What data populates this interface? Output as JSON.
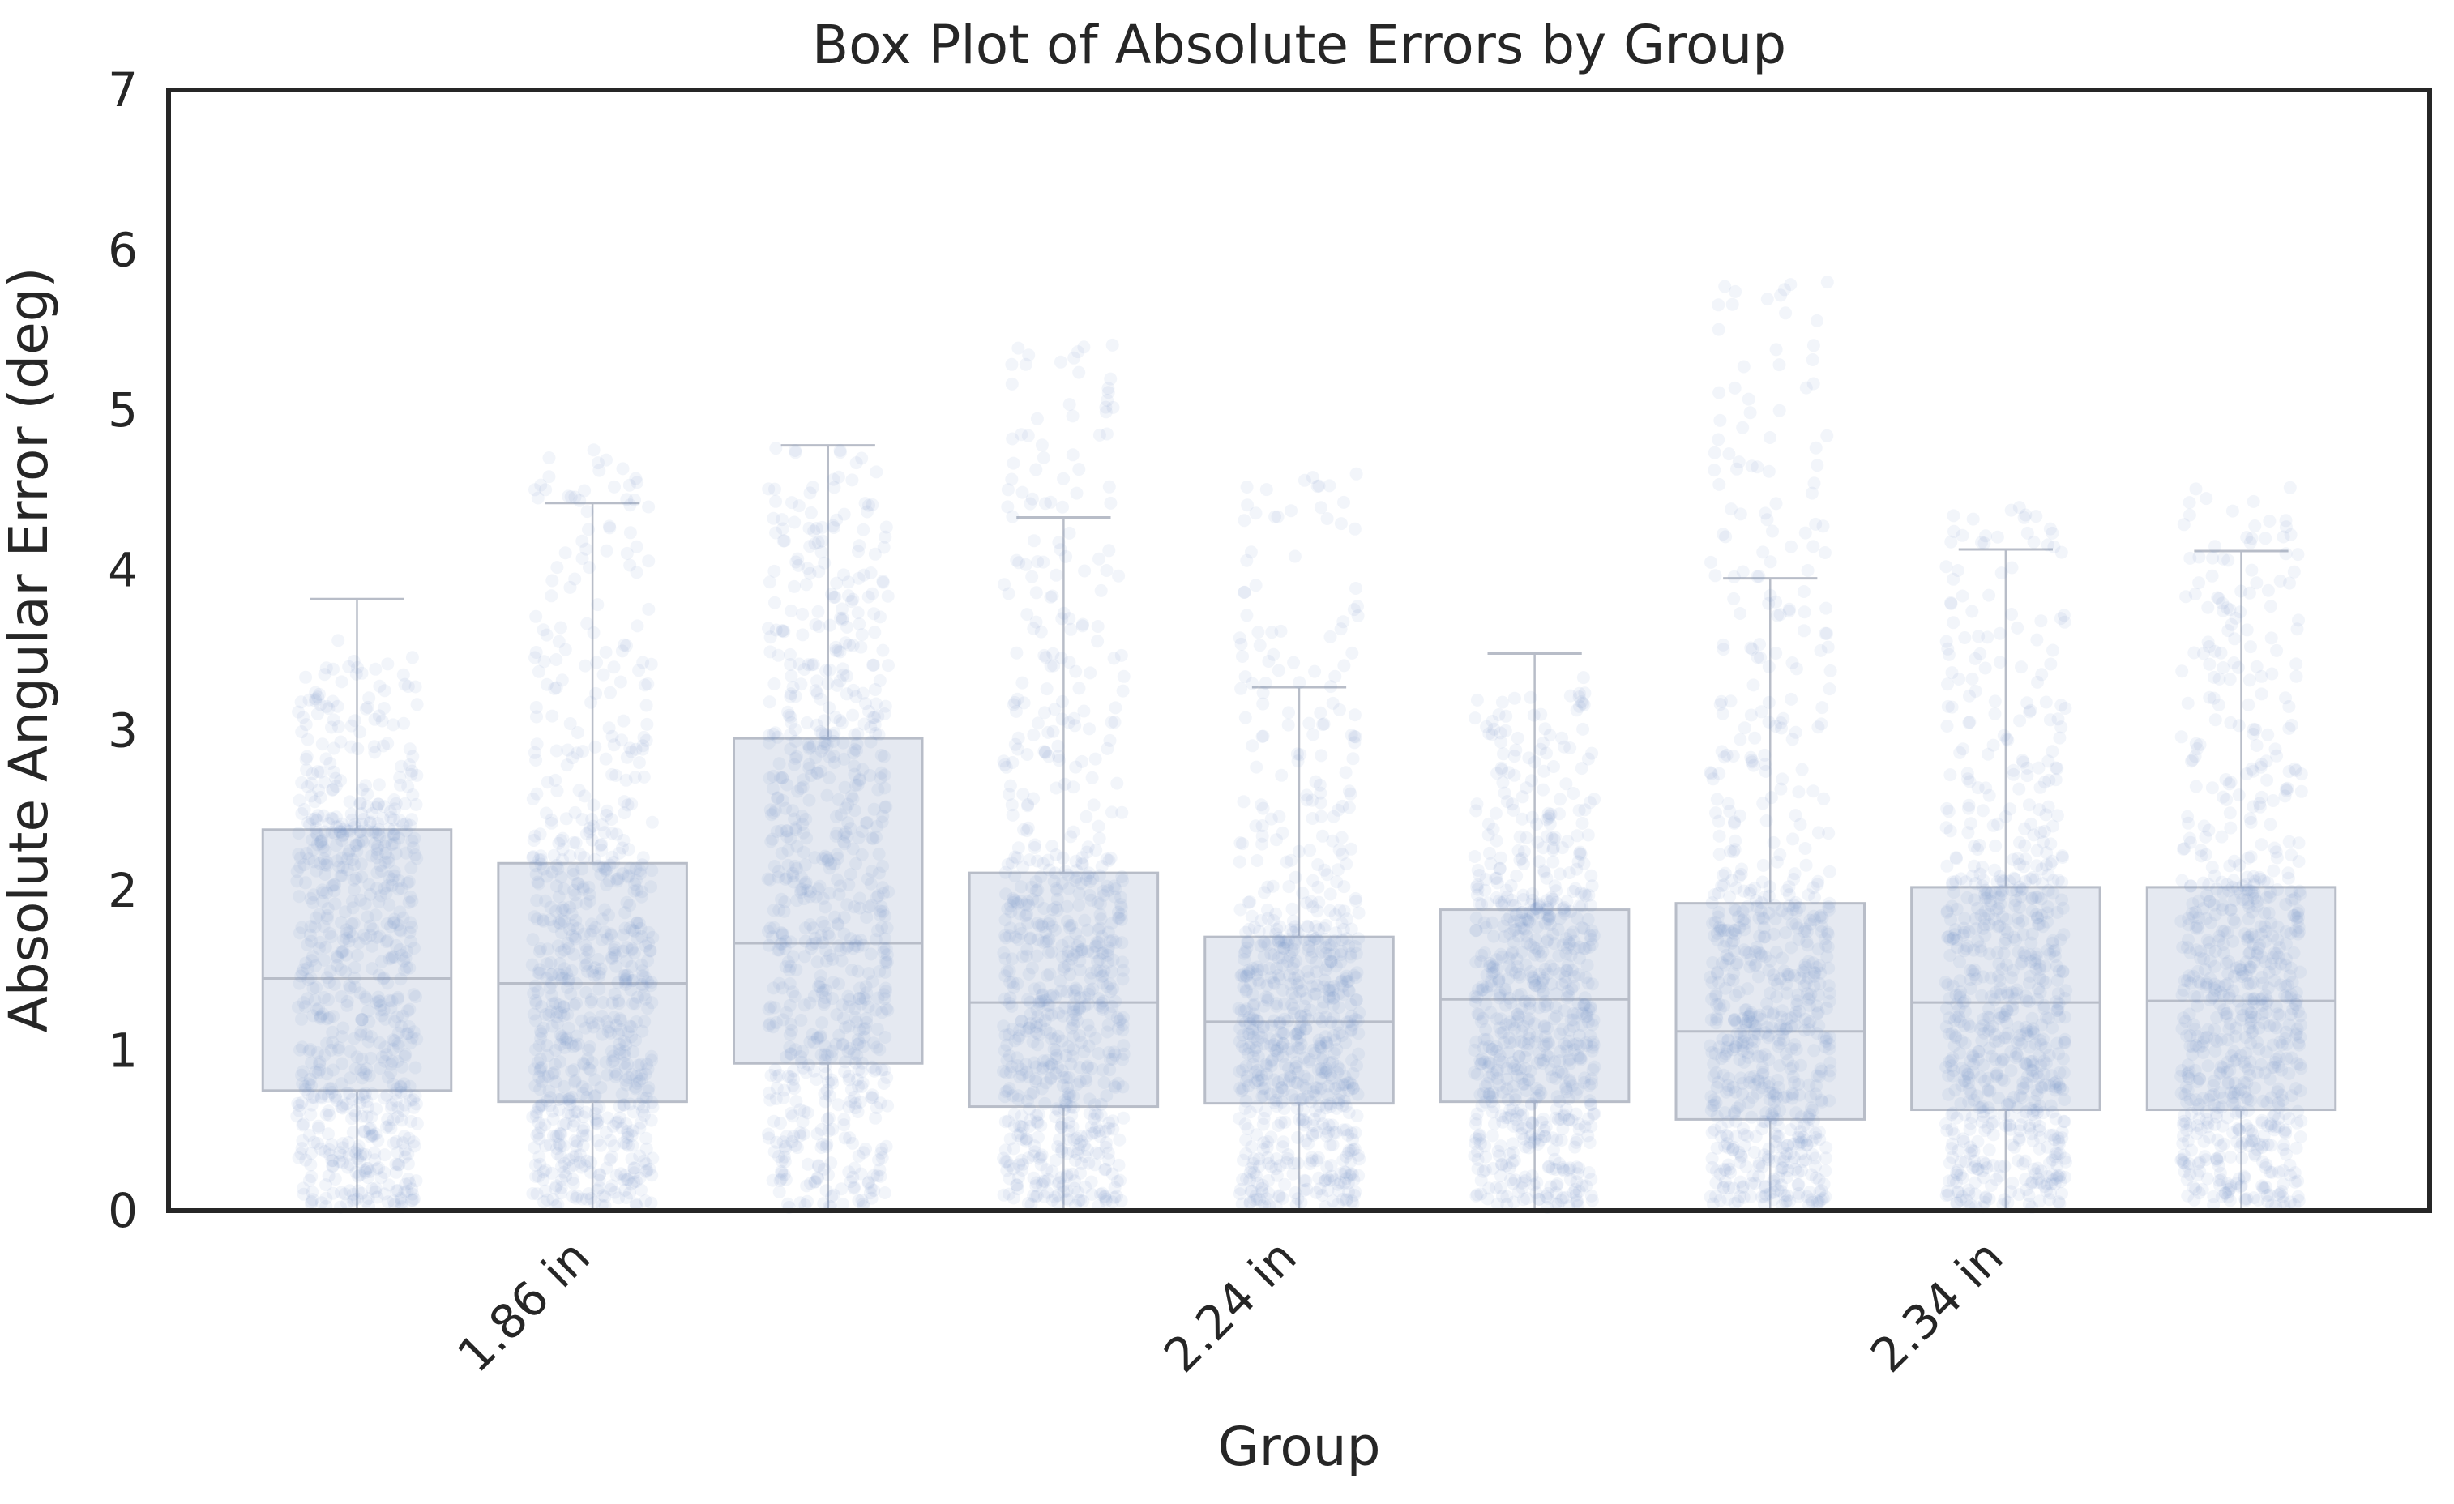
{
  "chart_data": {
    "type": "box",
    "title": "Box Plot of Absolute Errors by Group",
    "xlabel": "Group",
    "ylabel": "Absolute Angular Error (deg)",
    "ylim": [
      0,
      7
    ],
    "yticks": [
      "0",
      "1",
      "2",
      "3",
      "4",
      "5",
      "6",
      "7"
    ],
    "xtick_labels": [
      "1.86 in",
      "2.24 in",
      "2.34 in"
    ],
    "xtick_positions": [
      1,
      4,
      7
    ],
    "grid": false,
    "colors": {
      "box_fill": "#e5e9f1",
      "box_edge": "#b8bdc8",
      "points": "#6f8fc6",
      "frame": "#262626"
    },
    "boxes": [
      {
        "index": 0,
        "whisker_low": 0,
        "q1": 0.75,
        "median": 1.45,
        "q3": 2.38,
        "whisker_high": 3.82,
        "point_max": 3.5
      },
      {
        "index": 1,
        "whisker_low": 0,
        "q1": 0.68,
        "median": 1.42,
        "q3": 2.17,
        "whisker_high": 4.42,
        "point_max": 4.7
      },
      {
        "index": 2,
        "whisker_low": 0,
        "q1": 0.92,
        "median": 1.67,
        "q3": 2.95,
        "whisker_high": 4.78,
        "point_max": 4.8
      },
      {
        "index": 3,
        "whisker_low": 0,
        "q1": 0.65,
        "median": 1.3,
        "q3": 2.11,
        "whisker_high": 4.33,
        "point_max": 5.4
      },
      {
        "index": 4,
        "whisker_low": 0,
        "q1": 0.67,
        "median": 1.18,
        "q3": 1.71,
        "whisker_high": 3.27,
        "point_max": 4.6
      },
      {
        "index": 5,
        "whisker_low": 0,
        "q1": 0.68,
        "median": 1.32,
        "q3": 1.88,
        "whisker_high": 3.48,
        "point_max": 3.3
      },
      {
        "index": 6,
        "whisker_low": 0,
        "q1": 0.57,
        "median": 1.12,
        "q3": 1.92,
        "whisker_high": 3.95,
        "point_max": 5.8
      },
      {
        "index": 7,
        "whisker_low": 0,
        "q1": 0.63,
        "median": 1.3,
        "q3": 2.02,
        "whisker_high": 4.13,
        "point_max": 4.4
      },
      {
        "index": 8,
        "whisker_low": 0,
        "q1": 0.63,
        "median": 1.31,
        "q3": 2.02,
        "whisker_high": 4.12,
        "point_max": 4.5
      }
    ]
  }
}
